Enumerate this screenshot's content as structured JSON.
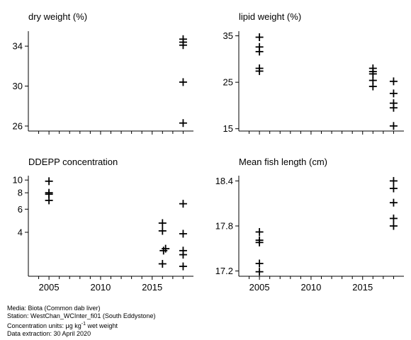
{
  "chart_data": [
    {
      "type": "scatter",
      "title": "dry weight (%)",
      "xlim": [
        2003,
        2019
      ],
      "ylim": [
        25.5,
        35.5
      ],
      "yticks": [
        26,
        30,
        34
      ],
      "show_x_tick_labels": false,
      "marker": "plus",
      "points": [
        {
          "x": 2018,
          "y": 34.7
        },
        {
          "x": 2018,
          "y": 34.4
        },
        {
          "x": 2018,
          "y": 34.1
        },
        {
          "x": 2018,
          "y": 30.4
        },
        {
          "x": 2018,
          "y": 26.3
        }
      ]
    },
    {
      "type": "scatter",
      "title": "lipid weight (%)",
      "xlim": [
        2003,
        2019
      ],
      "ylim": [
        14.5,
        36
      ],
      "yticks": [
        15,
        25,
        35
      ],
      "show_x_tick_labels": false,
      "marker": "plus",
      "points": [
        {
          "x": 2005,
          "y": 34.7
        },
        {
          "x": 2005,
          "y": 32.6
        },
        {
          "x": 2005,
          "y": 31.6
        },
        {
          "x": 2005,
          "y": 28.0
        },
        {
          "x": 2005,
          "y": 27.4
        },
        {
          "x": 2016,
          "y": 28.0
        },
        {
          "x": 2016,
          "y": 27.3
        },
        {
          "x": 2016,
          "y": 26.8
        },
        {
          "x": 2016,
          "y": 25.4
        },
        {
          "x": 2016,
          "y": 24.1
        },
        {
          "x": 2018,
          "y": 25.2
        },
        {
          "x": 2018,
          "y": 22.6
        },
        {
          "x": 2018,
          "y": 20.5
        },
        {
          "x": 2018,
          "y": 19.5
        },
        {
          "x": 2018,
          "y": 15.6
        }
      ]
    },
    {
      "type": "scatter",
      "title": "DDEPP concentration",
      "xlim": [
        2003,
        2019
      ],
      "ylim": [
        1.85,
        10.8
      ],
      "yscale": "log",
      "yticks": [
        4,
        6,
        8,
        10
      ],
      "xticks": [
        2005,
        2010,
        2015
      ],
      "show_x_tick_labels": true,
      "marker": "plus",
      "points": [
        {
          "x": 2005,
          "y": 9.8
        },
        {
          "x": 2005,
          "y": 8.0
        },
        {
          "x": 2005,
          "y": 7.8
        },
        {
          "x": 2005,
          "y": 7.0
        },
        {
          "x": 2016,
          "y": 4.7
        },
        {
          "x": 2016,
          "y": 4.1
        },
        {
          "x": 2016.1,
          "y": 2.9
        },
        {
          "x": 2016.3,
          "y": 3.0
        },
        {
          "x": 2016,
          "y": 2.3
        },
        {
          "x": 2018,
          "y": 6.6
        },
        {
          "x": 2018,
          "y": 3.9
        },
        {
          "x": 2018,
          "y": 2.9
        },
        {
          "x": 2018,
          "y": 2.7
        },
        {
          "x": 2018,
          "y": 2.2
        }
      ]
    },
    {
      "type": "scatter",
      "title": "Mean fish length (cm)",
      "xlim": [
        2003,
        2019
      ],
      "ylim": [
        17.13,
        18.47
      ],
      "yticks": [
        17.2,
        17.8,
        18.4
      ],
      "xticks": [
        2005,
        2010,
        2015
      ],
      "show_x_tick_labels": true,
      "marker": "plus",
      "points": [
        {
          "x": 2005,
          "y": 17.72
        },
        {
          "x": 2005,
          "y": 17.61
        },
        {
          "x": 2005,
          "y": 17.58
        },
        {
          "x": 2005,
          "y": 17.3
        },
        {
          "x": 2005,
          "y": 17.19
        },
        {
          "x": 2018,
          "y": 18.4
        },
        {
          "x": 2018,
          "y": 18.3
        },
        {
          "x": 2018,
          "y": 18.11
        },
        {
          "x": 2018,
          "y": 17.9
        },
        {
          "x": 2018,
          "y": 17.8
        }
      ]
    }
  ],
  "caption": {
    "media": "Media: Biota (Common dab liver)",
    "station": "Station: WestChan_WCInter_fi01 (South Eddystone)",
    "units_prefix": "Concentration units:  μg kg",
    "units_sup": "-1",
    "units_suffix": " wet weight",
    "extraction": "Data extraction: 30 April 2020"
  }
}
